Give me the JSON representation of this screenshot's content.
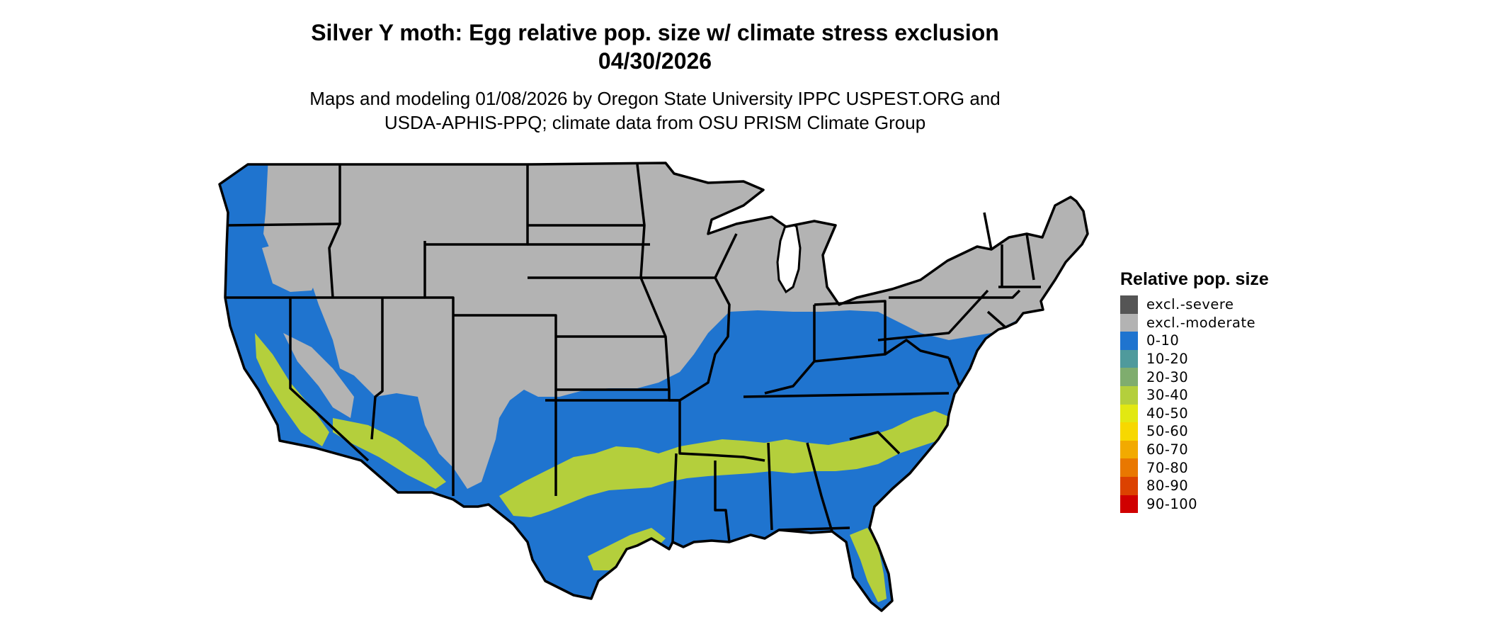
{
  "title": {
    "line1": "Silver Y moth: Egg relative pop. size w/ climate stress exclusion",
    "line2": "04/30/2026"
  },
  "subtitle": {
    "line1": "Maps and modeling 01/08/2026 by Oregon State University IPPC USPEST.ORG and",
    "line2": "USDA-APHIS-PPQ; climate data from OSU PRISM Climate Group"
  },
  "legend": {
    "title": "Relative pop. size",
    "items": [
      {
        "label": "excl.-severe",
        "color": "#555555"
      },
      {
        "label": "excl.-moderate",
        "color": "#b3b3b3"
      },
      {
        "label": "0-10",
        "color": "#1f74cf"
      },
      {
        "label": "10-20",
        "color": "#4f9a9c"
      },
      {
        "label": "20-30",
        "color": "#7fad6e"
      },
      {
        "label": "30-40",
        "color": "#b4cf3c"
      },
      {
        "label": "40-50",
        "color": "#e2e812"
      },
      {
        "label": "50-60",
        "color": "#f7d800"
      },
      {
        "label": "60-70",
        "color": "#f2aa00"
      },
      {
        "label": "70-80",
        "color": "#e97800"
      },
      {
        "label": "80-90",
        "color": "#dc4200"
      },
      {
        "label": "90-100",
        "color": "#d00000"
      }
    ]
  },
  "map": {
    "region": "contiguous United States",
    "colors": {
      "excluded": "#b3b3b3",
      "low": "#1f74cf",
      "band": "#b4cf3c",
      "border": "#000000"
    }
  }
}
